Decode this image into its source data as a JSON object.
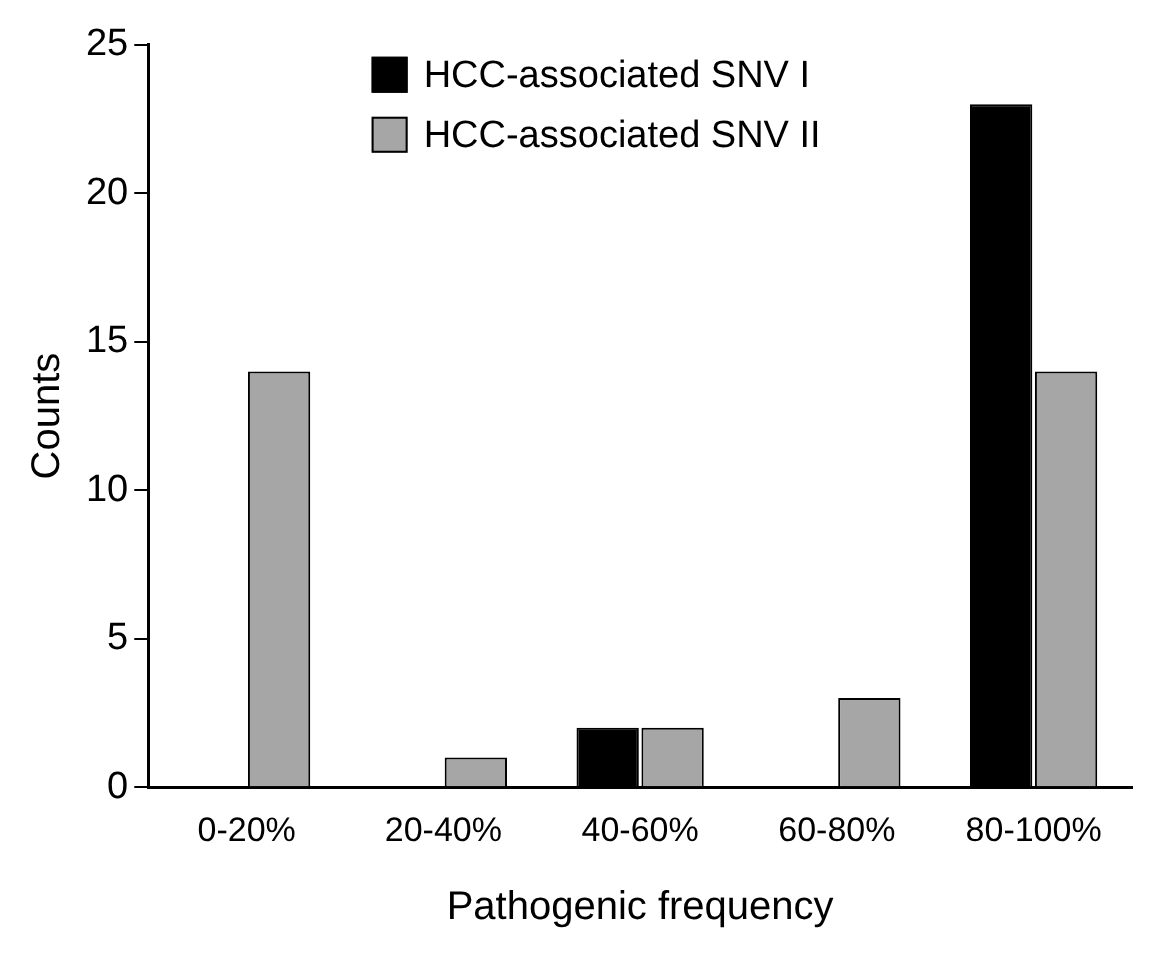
{
  "chart_data": {
    "type": "bar",
    "xlabel": "Pathogenic frequency",
    "ylabel": "Counts",
    "categories": [
      "0-20%",
      "20-40%",
      "40-60%",
      "60-80%",
      "80-100%"
    ],
    "series": [
      {
        "name": "HCC-associated SNV I",
        "color": "#000000",
        "values": [
          0,
          0,
          2,
          0,
          23
        ]
      },
      {
        "name": "HCC-associated SNV II",
        "color": "#a6a6a6",
        "values": [
          14,
          1,
          2,
          3,
          14
        ]
      }
    ],
    "ylim": [
      0,
      25
    ],
    "yticks": [
      0,
      5,
      10,
      15,
      20,
      25
    ],
    "grid": false,
    "legend": "top"
  }
}
